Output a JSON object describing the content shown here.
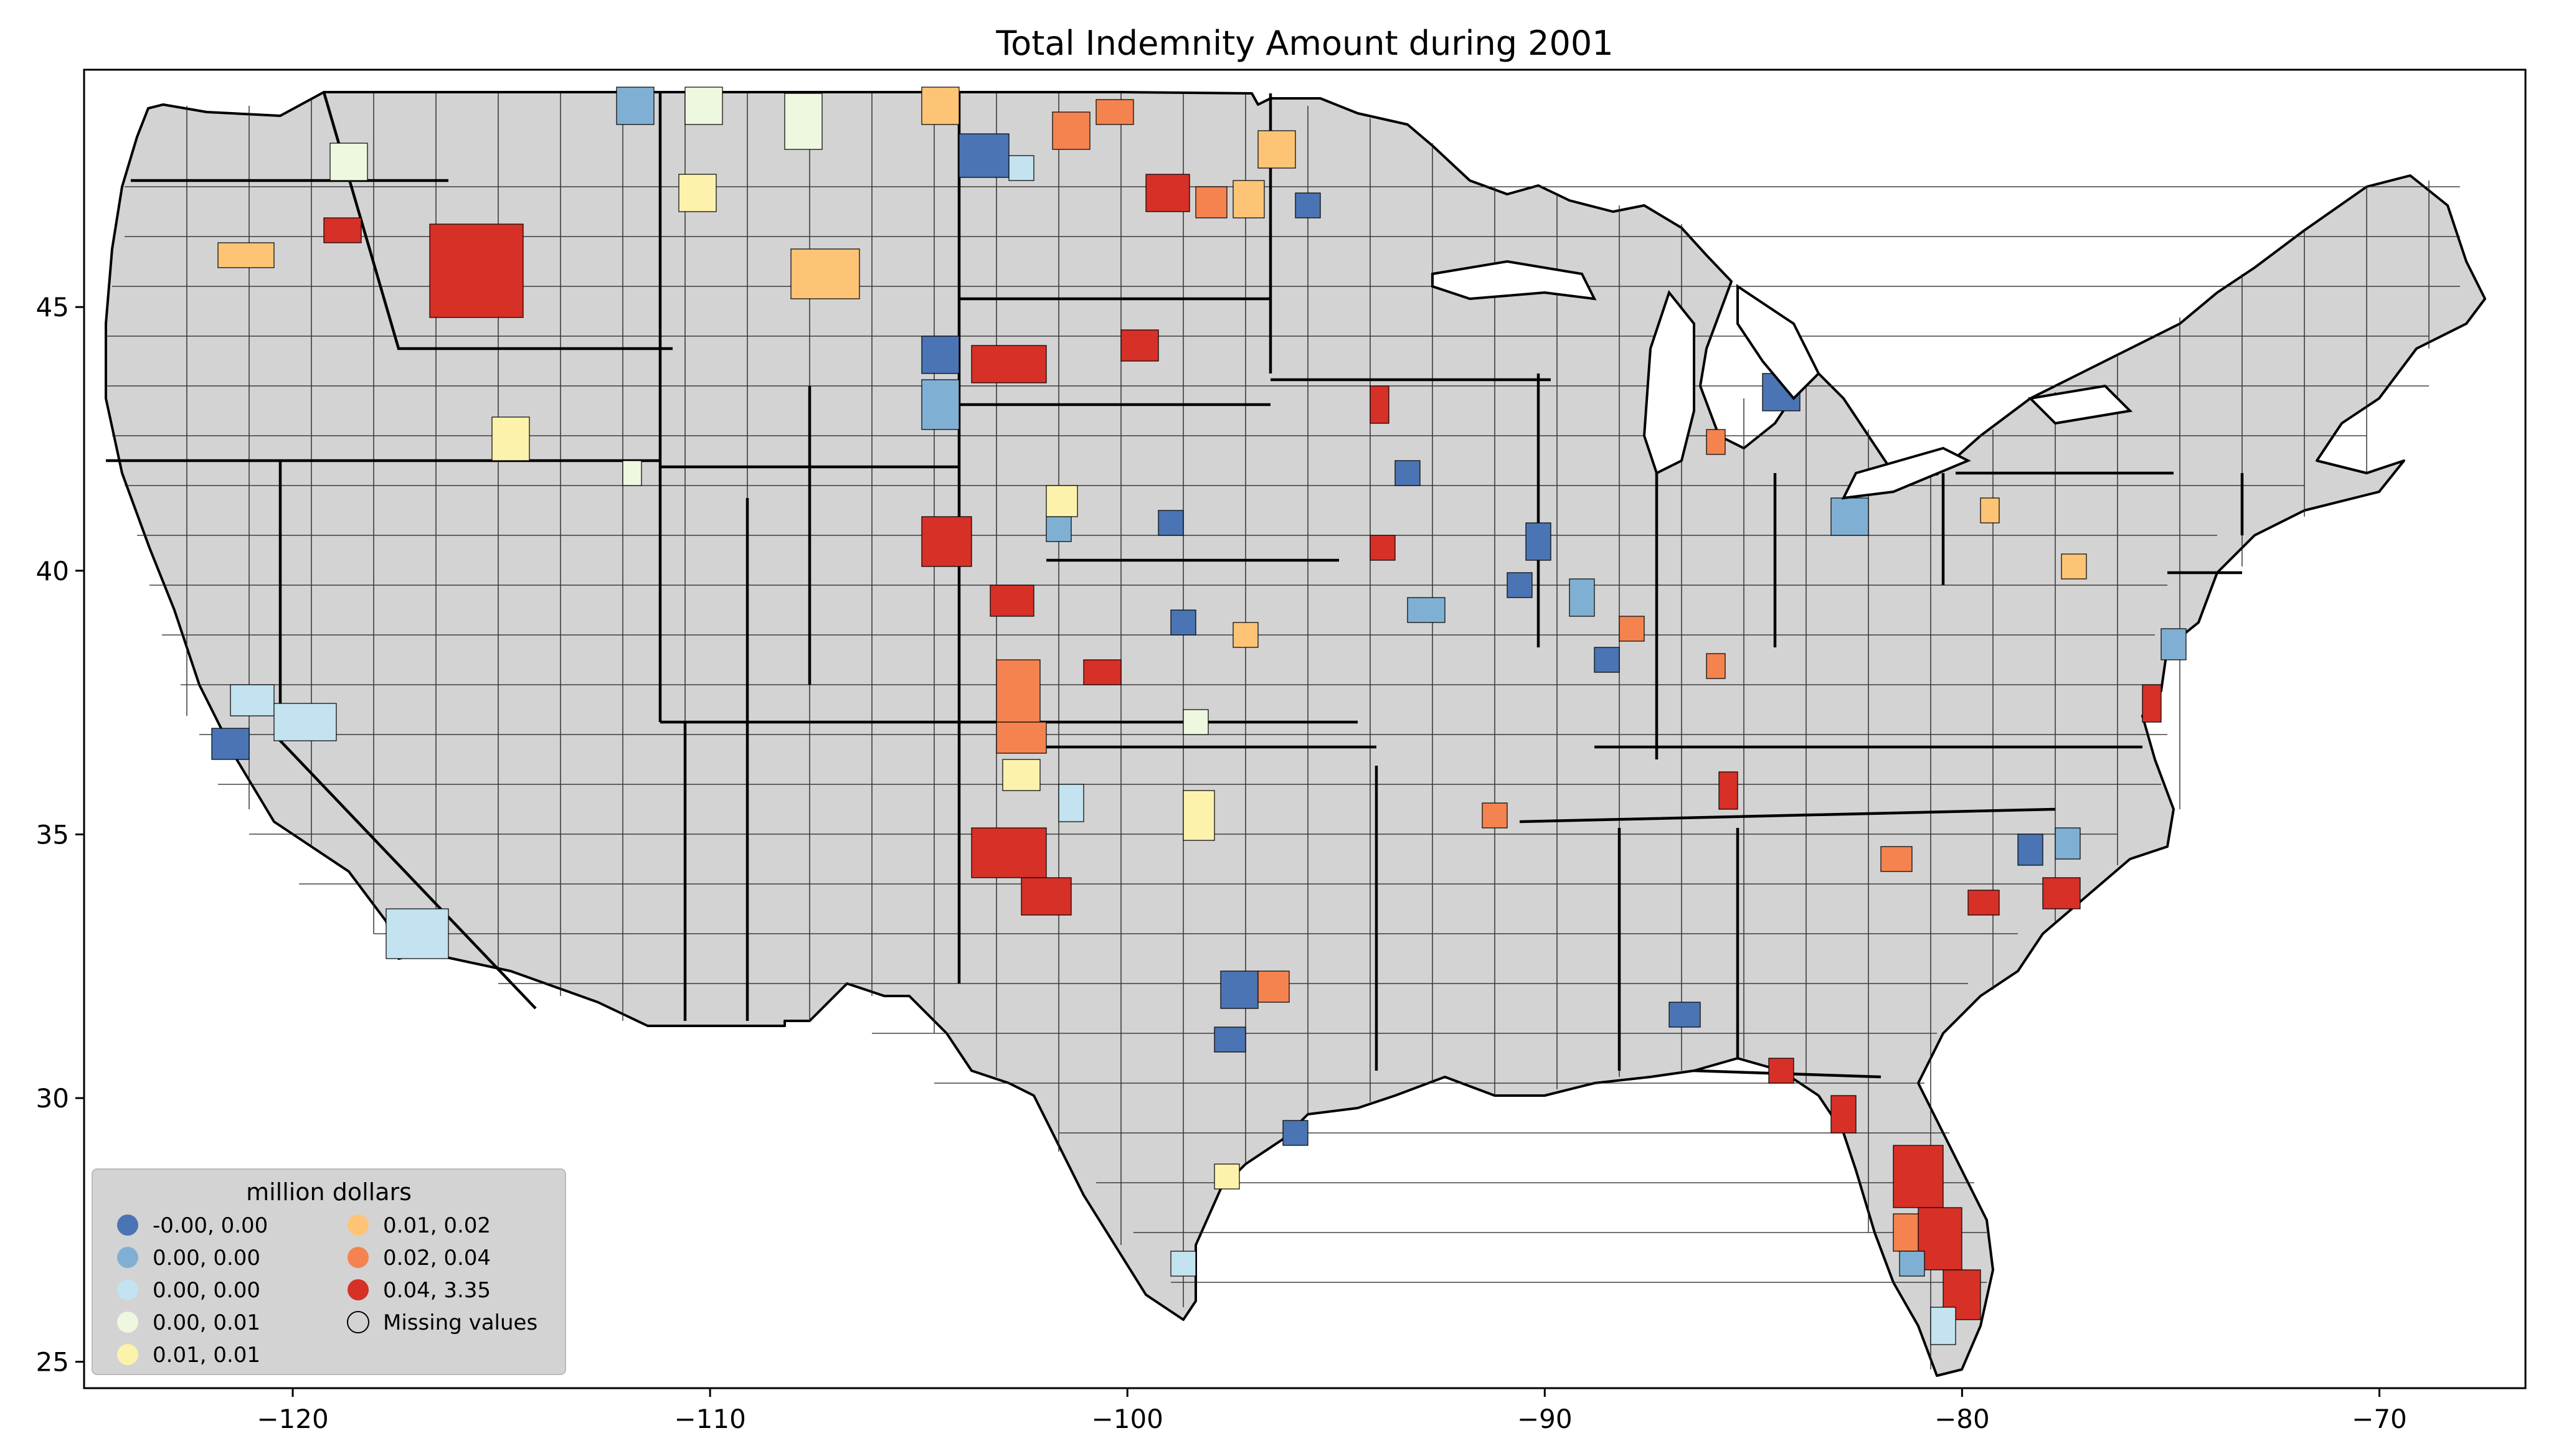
{
  "chart_data": {
    "type": "choropleth",
    "title": "Total Indemnity Amount during 2001",
    "x_ticks": [
      "−120",
      "−110",
      "−100",
      "−90",
      "−80",
      "−70"
    ],
    "x_tick_values": [
      -120,
      -110,
      -100,
      -90,
      -80,
      -70
    ],
    "y_ticks": [
      "25",
      "30",
      "35",
      "40",
      "45"
    ],
    "y_tick_values": [
      25,
      30,
      35,
      40,
      45
    ],
    "xlim": [
      -125,
      -66.5
    ],
    "ylim": [
      24.5,
      49.5
    ],
    "legend": {
      "title": "million dollars",
      "placement": "lower-left",
      "entries": [
        {
          "label": "-0.00,  0.00",
          "color": "#4a74b4"
        },
        {
          "label": "0.00,  0.00",
          "color": "#7fb0d3"
        },
        {
          "label": "0.00,  0.00",
          "color": "#c2e3ef"
        },
        {
          "label": "0.00,  0.01",
          "color": "#edf8df"
        },
        {
          "label": "0.01,  0.01",
          "color": "#fdf2ac"
        },
        {
          "label": "0.01,  0.02",
          "color": "#fdc475"
        },
        {
          "label": "0.02,  0.04",
          "color": "#f4834f"
        },
        {
          "label": "0.04,  3.35",
          "color": "#d73027"
        },
        {
          "label": "Missing values",
          "color": "#d3d3d3"
        }
      ]
    },
    "missing_color": "#d3d3d3"
  }
}
